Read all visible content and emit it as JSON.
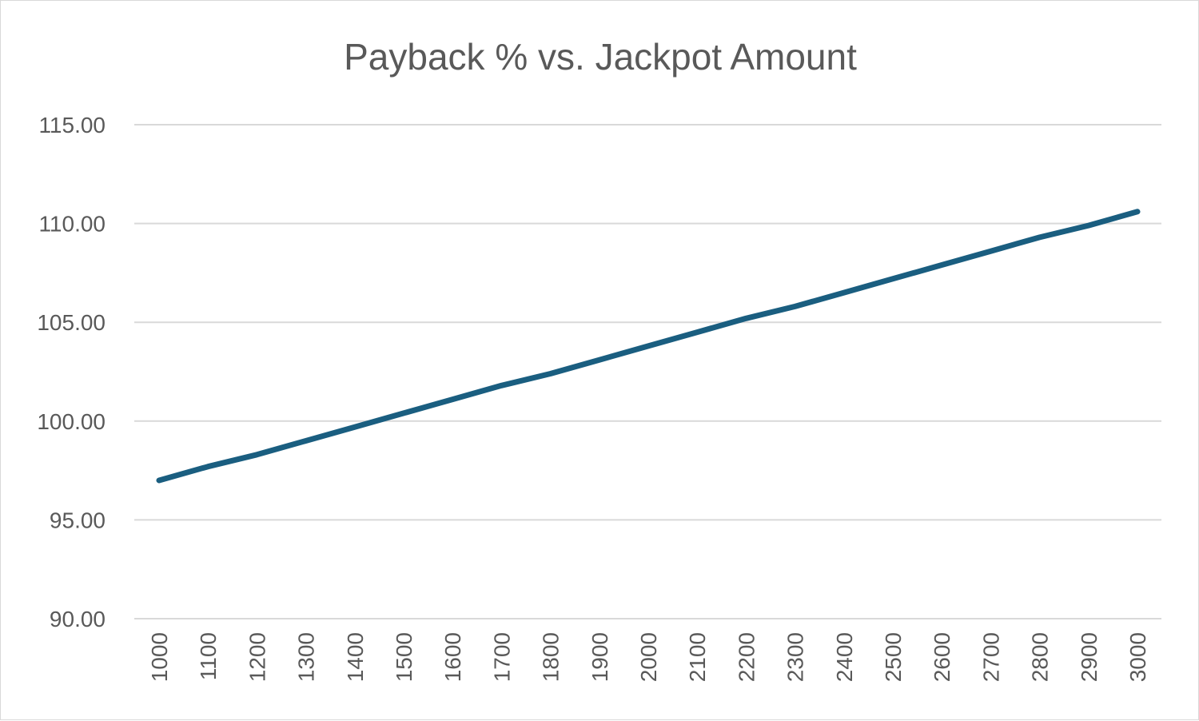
{
  "chart_data": {
    "type": "line",
    "title": "Payback % vs. Jackpot Amount",
    "xlabel": "",
    "ylabel": "",
    "categories": [
      "1000",
      "1100",
      "1200",
      "1300",
      "1400",
      "1500",
      "1600",
      "1700",
      "1800",
      "1900",
      "2000",
      "2100",
      "2200",
      "2300",
      "2400",
      "2500",
      "2600",
      "2700",
      "2800",
      "2900",
      "3000"
    ],
    "series": [
      {
        "values": [
          97.0,
          97.7,
          98.3,
          99.0,
          99.7,
          100.4,
          101.1,
          101.8,
          102.4,
          103.1,
          103.8,
          104.5,
          105.2,
          105.8,
          106.5,
          107.2,
          107.9,
          108.6,
          109.3,
          109.9,
          110.6
        ],
        "color": "#1a5e80"
      }
    ],
    "ylim": [
      90,
      115
    ],
    "yticks": [
      "90.00",
      "95.00",
      "100.00",
      "105.00",
      "110.00",
      "115.00"
    ],
    "grid": true,
    "legend": "none"
  }
}
